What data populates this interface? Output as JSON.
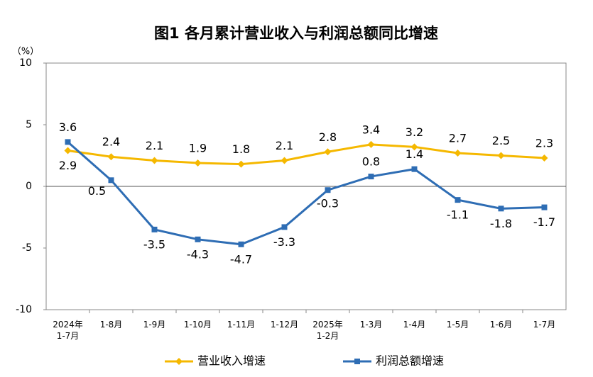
{
  "chart_data": {
    "type": "line",
    "title": "图1  各月累计营业收入与利润总额同比增速",
    "unit_label": "（%）",
    "categories": [
      "2024年\n1-7月",
      "1-8月",
      "1-9月",
      "1-10月",
      "1-11月",
      "1-12月",
      "2025年\n1-2月",
      "1-3月",
      "1-4月",
      "1-5月",
      "1-6月",
      "1-7月"
    ],
    "series": [
      {
        "name": "营业收入增速",
        "color": "#f5b800",
        "marker": "diamond",
        "values": [
          2.9,
          2.4,
          2.1,
          1.9,
          1.8,
          2.1,
          2.8,
          3.4,
          3.2,
          2.7,
          2.5,
          2.3
        ]
      },
      {
        "name": "利润总额增速",
        "color": "#2e6db4",
        "marker": "square",
        "values": [
          3.6,
          0.5,
          -3.5,
          -4.3,
          -4.7,
          -3.3,
          -0.3,
          0.8,
          1.4,
          -1.1,
          -1.8,
          -1.7
        ]
      }
    ],
    "ylim": [
      -10,
      10
    ],
    "yticks": [
      -10,
      -5,
      0,
      5,
      10
    ],
    "zero_line": true,
    "legend": "bottom"
  }
}
